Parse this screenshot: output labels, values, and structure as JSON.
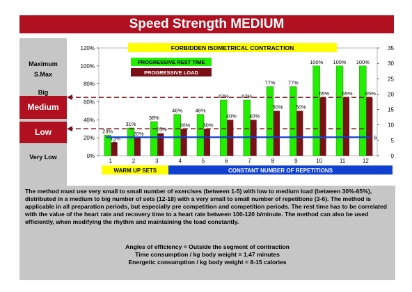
{
  "title": "Speed Strength MEDIUM",
  "left_labels": {
    "maximum": "Maximum",
    "smax": "S.Max",
    "big": "Big",
    "medium": "Medium",
    "low": "Low",
    "very_low": "Very Low"
  },
  "description": "The method must use very small to small number of exercises (between 1-5) with low to medium load (between 30%-65%), distributed in a medium to big number of sets (12-18) with a very small to small number of repetitions (3-6). The method is applicable in all preparation periods, but especially pre competition and competition periods. The rest time has to be correlated with the value of the heart rate and recovery time to a heart rate between 100-120 b/minute. The method can also be used efficiently, when modifying the rhythm and maintaining the load constantly.",
  "efficiency": {
    "angles": "Angles of efficiency = Outside the segment of contraction",
    "time": "Time consumption / kg body weight = 1.47 minutes",
    "energy": "Energetic consumption / kg body weight = 8-15 calories"
  },
  "colors": {
    "brand_red": "#b01020",
    "rest_green": "#22ee00",
    "load_darkred": "#7a1018",
    "repetitions_blue": "#1040d0",
    "panel_grey": "#c6c6c6",
    "yellow": "#ffff00"
  },
  "chart_data": {
    "type": "bar",
    "categories": [
      "1",
      "2",
      "3",
      "4",
      "5",
      "6",
      "7",
      "8",
      "9",
      "10",
      "11",
      "12"
    ],
    "ylim": [
      0,
      120
    ],
    "ylim_right": [
      0,
      35
    ],
    "y_ticks": [
      "0%",
      "20%",
      "40%",
      "60%",
      "80%",
      "100%",
      "120%"
    ],
    "y_ticks_right": [
      "0",
      "5",
      "10",
      "15",
      "20",
      "25",
      "30",
      "35"
    ],
    "series": [
      {
        "name": "PROGRESSIVE REST TIME",
        "values": [
          23,
          31,
          38,
          46,
          46,
          62,
          62,
          77,
          77,
          100,
          100,
          100
        ],
        "labels": [
          "23%",
          "31%",
          "38%",
          "46%",
          "46%",
          "62%",
          "62%",
          "77%",
          "77%",
          "100%",
          "100%",
          "100%"
        ]
      },
      {
        "name": "PROGRESSIVE LOAD",
        "values": [
          15,
          20,
          25,
          30,
          30,
          40,
          40,
          50,
          50,
          65,
          65,
          65
        ],
        "labels": [
          "15%",
          "20%",
          "25%",
          "30%",
          "30%",
          "40%",
          "40%",
          "50%",
          "50%",
          "65%",
          "65%",
          "65%"
        ]
      }
    ],
    "repetitions_line": 6,
    "repetitions_labels": [
      "6",
      "6"
    ],
    "reference_arrows": [
      65,
      30
    ],
    "annotations": {
      "forbidden": "FORBIDDEN ISOMETRICAL CONTRACTION",
      "warmup": "WARM UP SETS",
      "constant": "CONSTANT NUMBER OF REPETITIONS"
    },
    "legend": "top-left"
  }
}
